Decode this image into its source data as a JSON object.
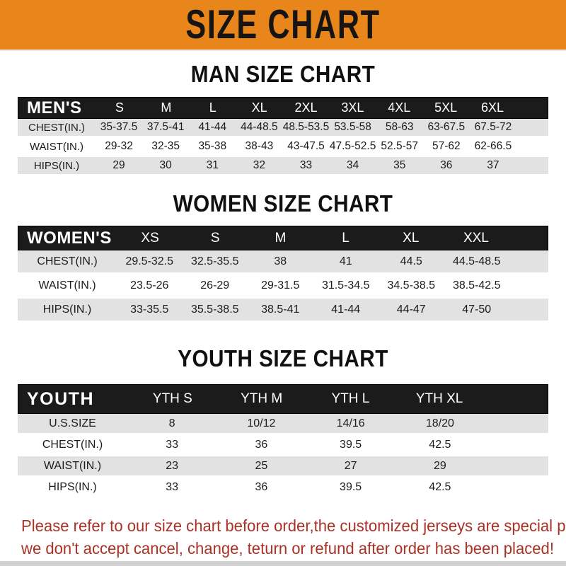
{
  "header": {
    "title": "SIZE CHART",
    "banner_bg": "#E8861C",
    "banner_text_color": "#171513"
  },
  "chart_data": [
    {
      "type": "table",
      "title": "MAN SIZE CHART",
      "header_label": "MEN'S",
      "columns": [
        "S",
        "M",
        "L",
        "XL",
        "2XL",
        "3XL",
        "4XL",
        "5XL",
        "6XL"
      ],
      "rows": [
        {
          "label": "CHEST(IN.)",
          "values": [
            "35-37.5",
            "37.5-41",
            "41-44",
            "44-48.5",
            "48.5-53.5",
            "53.5-58",
            "58-63",
            "63-67.5",
            "67.5-72"
          ]
        },
        {
          "label": "WAIST(IN.)",
          "values": [
            "29-32",
            "32-35",
            "35-38",
            "38-43",
            "43-47.5",
            "47.5-52.5",
            "52.5-57",
            "57-62",
            "62-66.5"
          ]
        },
        {
          "label": "HIPS(IN.)",
          "values": [
            "29",
            "30",
            "31",
            "32",
            "33",
            "34",
            "35",
            "36",
            "37"
          ]
        }
      ]
    },
    {
      "type": "table",
      "title": "WOMEN SIZE CHART",
      "header_label": "WOMEN'S",
      "columns": [
        "XS",
        "S",
        "M",
        "L",
        "XL",
        "XXL"
      ],
      "rows": [
        {
          "label": "CHEST(IN.)",
          "values": [
            "29.5-32.5",
            "32.5-35.5",
            "38",
            "41",
            "44.5",
            "44.5-48.5"
          ]
        },
        {
          "label": "WAIST(IN.)",
          "values": [
            "23.5-26",
            "26-29",
            "29-31.5",
            "31.5-34.5",
            "34.5-38.5",
            "38.5-42.5"
          ]
        },
        {
          "label": "HIPS(IN.)",
          "values": [
            "33-35.5",
            "35.5-38.5",
            "38.5-41",
            "41-44",
            "44-47",
            "47-50"
          ]
        }
      ]
    },
    {
      "type": "table",
      "title": "YOUTH SIZE CHART",
      "header_label": "YOUTH",
      "columns": [
        "YTH S",
        "YTH M",
        "YTH L",
        "YTH XL"
      ],
      "rows": [
        {
          "label": "U.S.SIZE",
          "values": [
            "8",
            "10/12",
            "14/16",
            "18/20"
          ]
        },
        {
          "label": "CHEST(IN.)",
          "values": [
            "33",
            "36",
            "39.5",
            "42.5"
          ]
        },
        {
          "label": "WAIST(IN.)",
          "values": [
            "23",
            "25",
            "27",
            "29"
          ]
        },
        {
          "label": "HIPS(IN.)",
          "values": [
            "33",
            "36",
            "39.5",
            "42.5"
          ]
        }
      ]
    }
  ],
  "footer": {
    "line1": "Please refer to our size chart before order,the customized jerseys are special products,",
    "line2": "we don't accept cancel, change, teturn or refund after order has been placed!",
    "text_color": "#A93226"
  },
  "colors": {
    "banner_orange": "#E8861C",
    "table_header_black": "#1b1b1b",
    "row_gray": "#e2e2e2",
    "row_white": "#ffffff",
    "footer_red": "#A93226"
  }
}
